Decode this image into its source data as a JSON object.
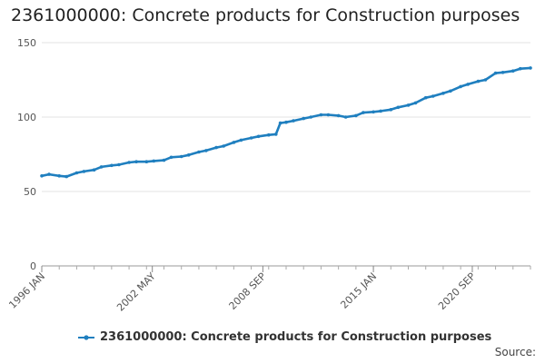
{
  "chart_data": {
    "type": "line",
    "title": "2361000000: Concrete products for Construction purposes",
    "xlabel": "",
    "ylabel": "",
    "ylim": [
      0,
      150
    ],
    "yticks": [
      "0",
      "50",
      "100",
      "150"
    ],
    "xtick_labels": [
      "1996 JAN",
      "2002 MAY",
      "2008 SEP",
      "2015 JAN",
      "2020 SEP"
    ],
    "grid": true,
    "legend_position": "bottom",
    "source_label": "Source:",
    "series": [
      {
        "name": "2361000000: Concrete products for Construction purposes",
        "color": "#1f7fbf",
        "points": [
          [
            "1996-01",
            60.5
          ],
          [
            "1996-06",
            61.5
          ],
          [
            "1997-01",
            60.5
          ],
          [
            "1997-06",
            60.0
          ],
          [
            "1998-01",
            62.5
          ],
          [
            "1998-06",
            63.5
          ],
          [
            "1999-01",
            64.5
          ],
          [
            "1999-06",
            66.5
          ],
          [
            "2000-01",
            67.5
          ],
          [
            "2000-06",
            68.0
          ],
          [
            "2001-01",
            69.5
          ],
          [
            "2001-06",
            70.0
          ],
          [
            "2002-01",
            70.0
          ],
          [
            "2002-06",
            70.5
          ],
          [
            "2003-01",
            71.0
          ],
          [
            "2003-06",
            73.0
          ],
          [
            "2004-01",
            73.5
          ],
          [
            "2004-06",
            74.5
          ],
          [
            "2005-01",
            76.5
          ],
          [
            "2005-06",
            77.5
          ],
          [
            "2006-01",
            79.5
          ],
          [
            "2006-06",
            80.5
          ],
          [
            "2007-01",
            83.0
          ],
          [
            "2007-06",
            84.5
          ],
          [
            "2008-01",
            86.0
          ],
          [
            "2008-06",
            87.0
          ],
          [
            "2009-01",
            88.0
          ],
          [
            "2009-06",
            88.5
          ],
          [
            "2009-09",
            96.0
          ],
          [
            "2010-01",
            96.5
          ],
          [
            "2010-06",
            97.5
          ],
          [
            "2011-01",
            99.0
          ],
          [
            "2011-06",
            100.0
          ],
          [
            "2012-01",
            101.5
          ],
          [
            "2012-06",
            101.5
          ],
          [
            "2013-01",
            101.0
          ],
          [
            "2013-06",
            100.0
          ],
          [
            "2014-01",
            101.0
          ],
          [
            "2014-06",
            103.0
          ],
          [
            "2015-01",
            103.5
          ],
          [
            "2015-06",
            104.0
          ],
          [
            "2016-01",
            105.0
          ],
          [
            "2016-06",
            106.5
          ],
          [
            "2017-01",
            108.0
          ],
          [
            "2017-06",
            109.5
          ],
          [
            "2018-01",
            113.0
          ],
          [
            "2018-06",
            114.0
          ],
          [
            "2019-01",
            116.0
          ],
          [
            "2019-06",
            117.5
          ],
          [
            "2020-01",
            120.5
          ],
          [
            "2020-06",
            122.0
          ],
          [
            "2021-01",
            124.0
          ],
          [
            "2021-06",
            125.0
          ],
          [
            "2022-01",
            129.5
          ],
          [
            "2022-06",
            130.0
          ],
          [
            "2023-01",
            131.0
          ],
          [
            "2023-06",
            132.5
          ],
          [
            "2024-01",
            133.0
          ]
        ]
      }
    ]
  }
}
